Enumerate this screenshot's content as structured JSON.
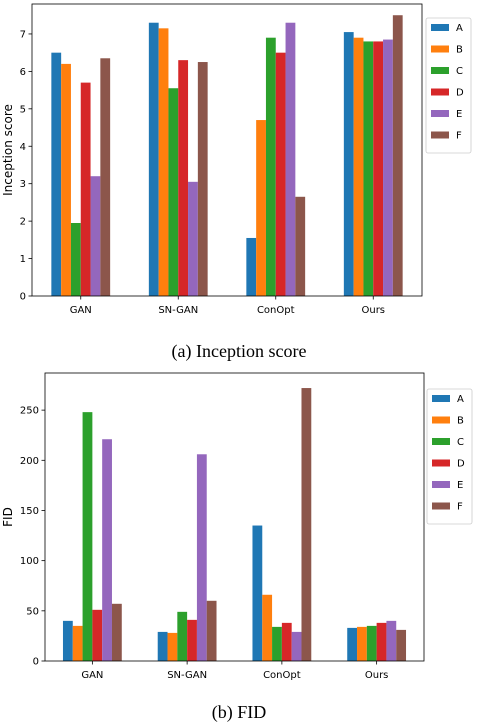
{
  "chart_data": [
    {
      "type": "bar",
      "ylabel": "Inception score",
      "caption": "(a) Inception score",
      "categories": [
        "GAN",
        "SN-GAN",
        "ConOpt",
        "Ours"
      ],
      "ylim": [
        0,
        7.8
      ],
      "yticks": [
        "0",
        "1",
        "2",
        "3",
        "4",
        "5",
        "6",
        "7"
      ],
      "grid": false,
      "legend": "right",
      "series": [
        {
          "name": "A",
          "color": "#1f77b4",
          "values": [
            6.5,
            7.3,
            1.55,
            7.05
          ]
        },
        {
          "name": "B",
          "color": "#ff7f0e",
          "values": [
            6.2,
            7.15,
            4.7,
            6.9
          ]
        },
        {
          "name": "C",
          "color": "#2ca02c",
          "values": [
            1.95,
            5.55,
            6.9,
            6.8
          ]
        },
        {
          "name": "D",
          "color": "#d62728",
          "values": [
            5.7,
            6.3,
            6.5,
            6.8
          ]
        },
        {
          "name": "E",
          "color": "#9467bd",
          "values": [
            3.2,
            3.05,
            7.3,
            6.85
          ]
        },
        {
          "name": "F",
          "color": "#8c564b",
          "values": [
            6.35,
            6.25,
            2.65,
            7.5
          ]
        }
      ]
    },
    {
      "type": "bar",
      "ylabel": "FID",
      "caption": "(b) FID",
      "categories": [
        "GAN",
        "SN-GAN",
        "ConOpt",
        "Ours"
      ],
      "ylim": [
        0,
        287
      ],
      "yticks": [
        "0",
        "50",
        "100",
        "150",
        "200",
        "250"
      ],
      "grid": false,
      "legend": "right",
      "series": [
        {
          "name": "A",
          "color": "#1f77b4",
          "values": [
            40,
            29,
            135,
            33
          ]
        },
        {
          "name": "B",
          "color": "#ff7f0e",
          "values": [
            35,
            28,
            66,
            34
          ]
        },
        {
          "name": "C",
          "color": "#2ca02c",
          "values": [
            248,
            49,
            34,
            35
          ]
        },
        {
          "name": "D",
          "color": "#d62728",
          "values": [
            51,
            41,
            38,
            38
          ]
        },
        {
          "name": "E",
          "color": "#9467bd",
          "values": [
            221,
            206,
            29,
            40
          ]
        },
        {
          "name": "F",
          "color": "#8c564b",
          "values": [
            57,
            60,
            272,
            31
          ]
        }
      ]
    }
  ]
}
